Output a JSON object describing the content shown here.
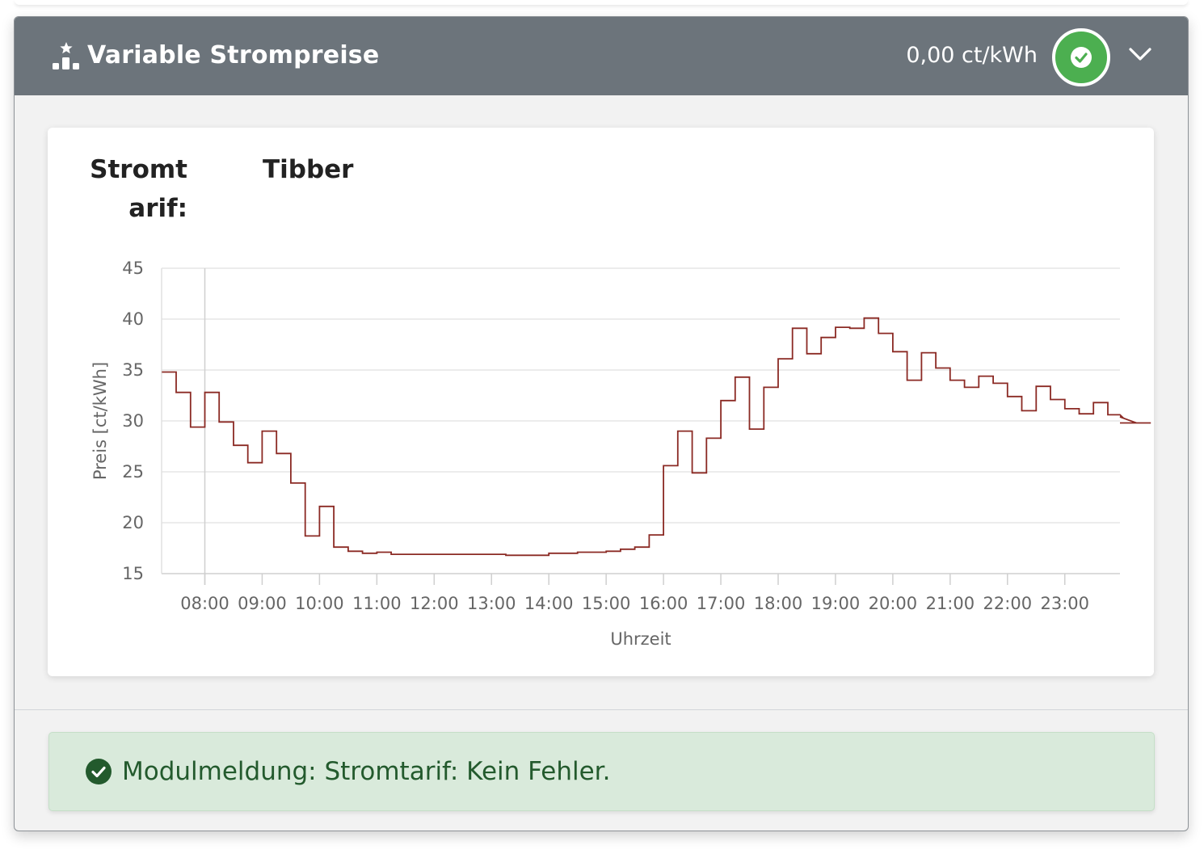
{
  "header": {
    "title": "Variable Strompreise",
    "current_price": "0,00 ct/kWh",
    "status": "ok",
    "icons": {
      "module": "price-chart-star-icon",
      "status": "check-circle-icon",
      "toggle": "chevron-down-icon"
    }
  },
  "tariff": {
    "label": "Stromtarif:",
    "value": "Tibber"
  },
  "chart_data": {
    "type": "line",
    "step": true,
    "xlabel": "Uhrzeit",
    "ylabel": "Preis [ct/kWh]",
    "ylim": [
      15,
      45
    ],
    "y_ticks": [
      "15",
      "20",
      "25",
      "30",
      "35",
      "40",
      "45"
    ],
    "x_ticks": [
      "08:00",
      "09:00",
      "10:00",
      "11:00",
      "12:00",
      "13:00",
      "14:00",
      "15:00",
      "16:00",
      "17:00",
      "18:00",
      "19:00",
      "20:00",
      "21:00",
      "22:00",
      "23:00"
    ],
    "color": "#8b2a24",
    "series": [
      {
        "start": "07:15",
        "interval_minutes": 15,
        "values": [
          34.8,
          32.8,
          29.4,
          32.8,
          29.9,
          27.6,
          25.9,
          29.0,
          26.8,
          23.9,
          18.7,
          21.6,
          17.6,
          17.2,
          17.0,
          17.1,
          16.9,
          16.9,
          16.9,
          16.9,
          16.9,
          16.9,
          16.9,
          16.9,
          16.8,
          16.8,
          16.8,
          17.0,
          17.0,
          17.1,
          17.1,
          17.2,
          17.4,
          17.6,
          18.8,
          25.6,
          29.0,
          24.9,
          28.3,
          32.0,
          34.3,
          29.2,
          33.3,
          36.1,
          39.1,
          36.6,
          38.2,
          39.2,
          39.1,
          40.1,
          38.6,
          36.8,
          34.0,
          36.7,
          35.2,
          34.0,
          33.3,
          34.4,
          33.7,
          32.4,
          31.0,
          33.4,
          32.1,
          31.2,
          30.7,
          31.8,
          30.6,
          30.4,
          29.8,
          29.8
        ]
      }
    ],
    "crosshair_x": "08:00"
  },
  "alert": {
    "text": "Modulmeldung: Stromtarif: Kein Fehler.",
    "icon": "check-circle-icon"
  },
  "colors": {
    "header_bg": "#6c747b",
    "status_green": "#4caf50",
    "alert_bg": "#d9eadb",
    "alert_text": "#235a2d",
    "line": "#8b2a24"
  }
}
